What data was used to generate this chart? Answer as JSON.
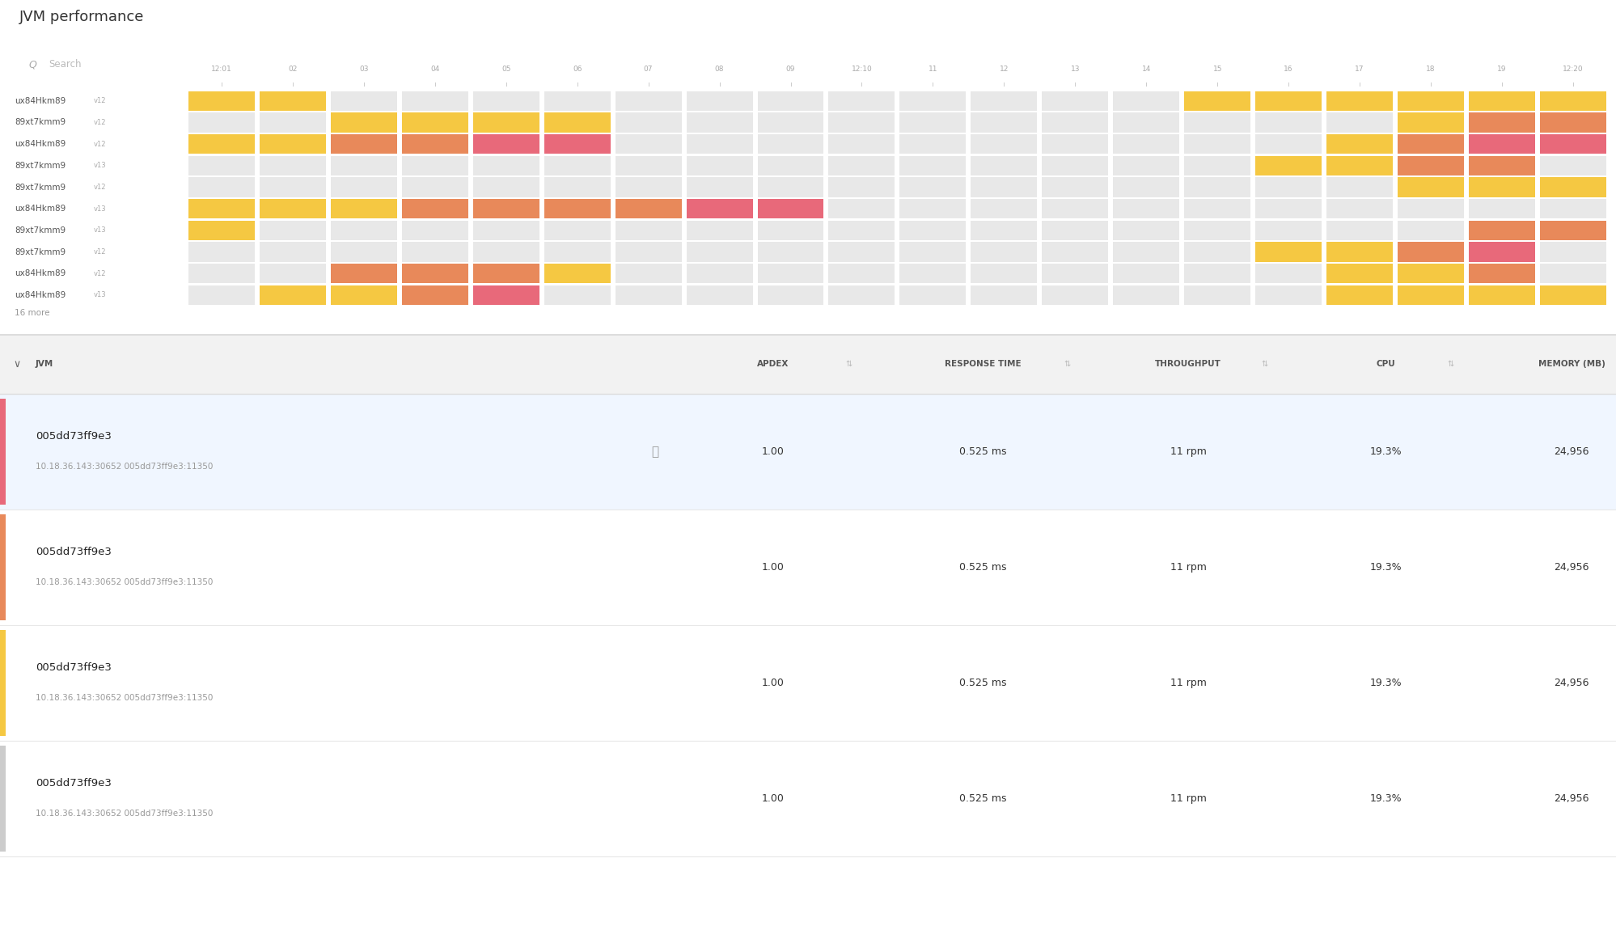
{
  "title": "JVM performance",
  "bg_color": "#ffffff",
  "colors": {
    "yellow": "#F5C842",
    "orange": "#E8895A",
    "pink": "#E8697A",
    "gray_cell": "#e8e8e8",
    "gray_line": "#bbbbbb",
    "black_line": "#333333"
  },
  "time_labels": [
    "12:01",
    "02",
    "03",
    "04",
    "05",
    "06",
    "07",
    "08",
    "09",
    "12:10",
    "11",
    "12",
    "13",
    "14",
    "15",
    "16",
    "17",
    "18",
    "19",
    "12:20"
  ],
  "rows": [
    {
      "label": "ux84Hkm89",
      "version": "v12",
      "cells": [
        "Y",
        "Y",
        "G",
        "G",
        "G",
        "G",
        "G",
        "G",
        "G",
        "G",
        "G",
        "G",
        "G",
        "G",
        "Y",
        "Y",
        "Y",
        "Y",
        "Y",
        "Y"
      ]
    },
    {
      "label": "89xt7kmm9",
      "version": "v12",
      "cells": [
        "G",
        "G",
        "Y",
        "Y",
        "Y",
        "Y",
        "G",
        "G",
        "G",
        "G",
        "G",
        "G",
        "G",
        "G",
        "G",
        "G",
        "G",
        "Y",
        "O",
        "O"
      ]
    },
    {
      "label": "ux84Hkm89",
      "version": "v12",
      "cells": [
        "Y",
        "Y",
        "O",
        "O",
        "P",
        "P",
        "G",
        "G",
        "G",
        "G",
        "G",
        "G",
        "G",
        "G",
        "G",
        "G",
        "Y",
        "O",
        "P",
        "P"
      ]
    },
    {
      "label": "89xt7kmm9",
      "version": "v13",
      "cells": [
        "G",
        "G",
        "G",
        "G",
        "G",
        "G",
        "G",
        "G",
        "G",
        "G",
        "G",
        "G",
        "G",
        "G",
        "G",
        "Y",
        "Y",
        "O",
        "O",
        "G"
      ]
    },
    {
      "label": "89xt7kmm9",
      "version": "v12",
      "cells": [
        "G",
        "G",
        "G",
        "G",
        "G",
        "G",
        "G",
        "G",
        "G",
        "G",
        "G",
        "G",
        "G",
        "G",
        "G",
        "G",
        "G",
        "Y",
        "Y",
        "Y"
      ]
    },
    {
      "label": "ux84Hkm89",
      "version": "v13",
      "cells": [
        "Y",
        "Y",
        "Y",
        "O",
        "O",
        "O",
        "O",
        "P",
        "P",
        "G",
        "G",
        "G",
        "G",
        "G",
        "G",
        "G",
        "G",
        "G",
        "G",
        "G"
      ]
    },
    {
      "label": "89xt7kmm9",
      "version": "v13",
      "cells": [
        "Y",
        "G",
        "G",
        "G",
        "G",
        "G",
        "G",
        "G",
        "G",
        "G",
        "G",
        "G",
        "G",
        "G",
        "G",
        "G",
        "G",
        "G",
        "O",
        "O"
      ]
    },
    {
      "label": "89xt7kmm9",
      "version": "v12",
      "cells": [
        "G",
        "G",
        "G",
        "G",
        "G",
        "G",
        "G",
        "G",
        "G",
        "G",
        "G",
        "G",
        "G",
        "G",
        "G",
        "Y",
        "Y",
        "O",
        "P",
        "G"
      ]
    },
    {
      "label": "ux84Hkm89",
      "version": "v12",
      "cells": [
        "G",
        "G",
        "O",
        "O",
        "O",
        "Y",
        "G",
        "G",
        "G",
        "G",
        "G",
        "G",
        "G",
        "G",
        "G",
        "G",
        "Y",
        "Y",
        "O",
        "G"
      ]
    },
    {
      "label": "ux84Hkm89",
      "version": "v13",
      "cells": [
        "G",
        "Y",
        "Y",
        "O",
        "P",
        "G",
        "G",
        "G",
        "G",
        "G",
        "G",
        "G",
        "G",
        "G",
        "G",
        "G",
        "Y",
        "Y",
        "Y",
        "Y"
      ]
    }
  ],
  "new_machines_black": [
    8,
    9,
    10,
    14,
    15
  ],
  "table_rows": [
    {
      "name": "005dd73ff9e3",
      "sub": "10.18.36.143:30652 005dd73ff9e3:11350",
      "apdex": "1.00",
      "response": "0.525 ms",
      "throughput": "11 rpm",
      "cpu": "19.3%",
      "memory": "24,956",
      "side_color": "#E8697A",
      "hover": true
    },
    {
      "name": "005dd73ff9e3",
      "sub": "10.18.36.143:30652 005dd73ff9e3:11350",
      "apdex": "1.00",
      "response": "0.525 ms",
      "throughput": "11 rpm",
      "cpu": "19.3%",
      "memory": "24,956",
      "side_color": "#E8895A",
      "hover": false
    },
    {
      "name": "005dd73ff9e3",
      "sub": "10.18.36.143:30652 005dd73ff9e3:11350",
      "apdex": "1.00",
      "response": "0.525 ms",
      "throughput": "11 rpm",
      "cpu": "19.3%",
      "memory": "24,956",
      "side_color": "#F5C842",
      "hover": false
    },
    {
      "name": "005dd73ff9e3",
      "sub": "10.18.36.143:30652 005dd73ff9e3:11350",
      "apdex": "1.00",
      "response": "0.525 ms",
      "throughput": "11 rpm",
      "cpu": "19.3%",
      "memory": "24,956",
      "side_color": "#cccccc",
      "hover": false
    }
  ]
}
